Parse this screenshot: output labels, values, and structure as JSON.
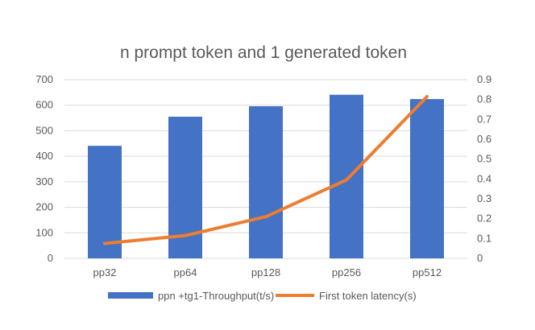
{
  "chart_data": {
    "type": "bar",
    "title": "n prompt token and 1 generated token",
    "categories": [
      "pp32",
      "pp64",
      "pp128",
      "pp256",
      "pp512"
    ],
    "y_left": {
      "ticks": [
        "0",
        "100",
        "200",
        "300",
        "400",
        "500",
        "600",
        "700"
      ],
      "ylim": [
        0,
        700
      ]
    },
    "y_right": {
      "ticks": [
        "0",
        "0.1",
        "0.2",
        "0.3",
        "0.4",
        "0.5",
        "0.6",
        "0.7",
        "0.8",
        "0.9"
      ],
      "ylim": [
        0,
        0.9
      ]
    },
    "grid": true,
    "legend_position": "bottom",
    "series": [
      {
        "name": "ppn +tg1-Throughput(t/s)",
        "type": "bar",
        "axis": "left",
        "color": "#4472c4",
        "values": [
          441,
          555,
          596,
          641,
          624
        ]
      },
      {
        "name": "First token latency(s)",
        "type": "line",
        "axis": "right",
        "color": "#ed7d31",
        "values": [
          0.075,
          0.115,
          0.21,
          0.395,
          0.815
        ]
      }
    ]
  }
}
